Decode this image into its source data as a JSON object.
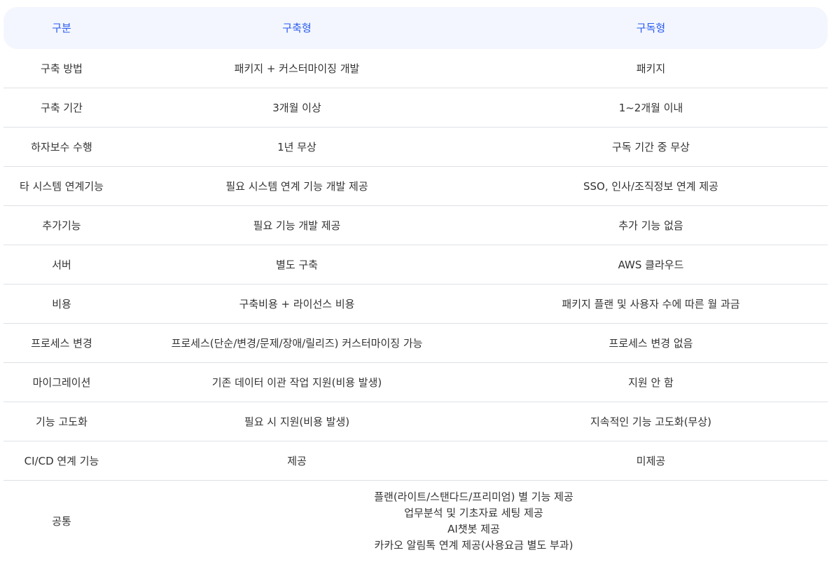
{
  "header": [
    "구분",
    "구축형",
    "구독형"
  ],
  "rows": [
    [
      "구축 방법",
      "패키지 + 커스터마이징 개발",
      "패키지"
    ],
    [
      "구축 기간",
      "3개월 이상",
      "1~2개월 이내"
    ],
    [
      "하자보수 수행",
      "1년 무상",
      "구독 기간 중 무상"
    ],
    [
      "타 시스템 연계기능",
      "필요 시스템 연계 기능 개발 제공",
      "SSO, 인사/조직정보 연계 제공"
    ],
    [
      "추가기능",
      "필요 기능 개발 제공",
      "추가 기능 없음"
    ],
    [
      "서버",
      "별도 구축",
      "AWS 클라우드"
    ],
    [
      "비용",
      "구축비용 + 라이선스 비용",
      "패키지 플랜 및 사용자 수에 따른 월 과금"
    ],
    [
      "프로세스 변경",
      "프로세스(단순/변경/문제/장애/릴리즈) 커스터마이징 가능",
      "프로세스 변경 없음"
    ],
    [
      "마이그레이션",
      "기존 데이터 이관 작업 지원(비용 발생)",
      "지원 안 함"
    ],
    [
      "기능 고도화",
      "필요 시 지원(비용 발생)",
      "지속적인 기능 고도화(무상)"
    ],
    [
      "CI/CD 연계 기능",
      "제공",
      "미제공"
    ]
  ],
  "common": {
    "label": "공통",
    "lines": [
      "플랜(라이트/스탠다드/프리미엄) 별 기능 제공",
      "업무분석 및 기초자료 세팅 제공",
      "AI챗봇 제공",
      "카카오 알림톡 연계 제공(사용요금 별도 부과)"
    ]
  },
  "colors": {
    "header_text": "#2a5bf0",
    "header_bg": "#f3f6ff",
    "border": "#dde1e6"
  }
}
